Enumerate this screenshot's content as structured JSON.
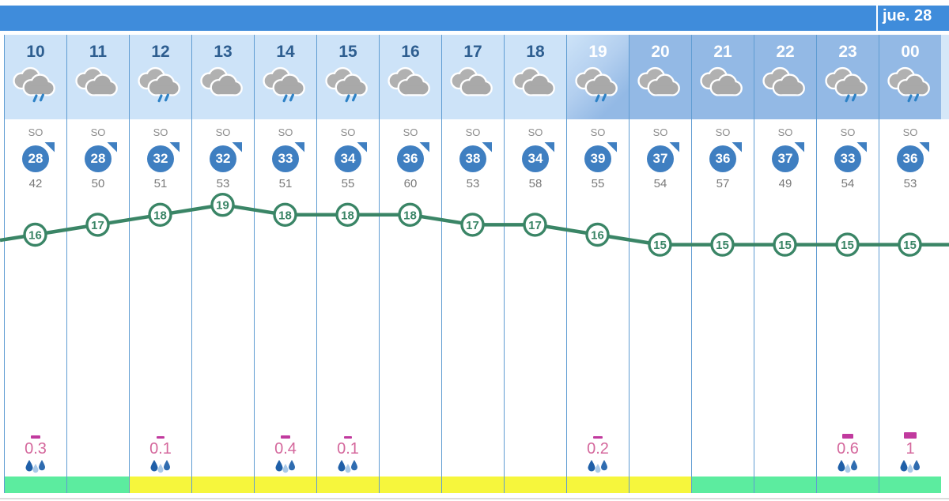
{
  "topbar": {
    "date_label": "jue. 28"
  },
  "columns": [
    {
      "hour": "10",
      "period": "day",
      "weather": "rain",
      "wind_dir": "SO",
      "wind_speed": "28",
      "wind_gust": "42",
      "temp": 16,
      "precip": "0.3",
      "strip": "green"
    },
    {
      "hour": "11",
      "period": "day",
      "weather": "cloudy",
      "wind_dir": "SO",
      "wind_speed": "28",
      "wind_gust": "50",
      "temp": 17,
      "precip": "",
      "strip": "green"
    },
    {
      "hour": "12",
      "period": "day",
      "weather": "rain",
      "wind_dir": "SO",
      "wind_speed": "32",
      "wind_gust": "51",
      "temp": 18,
      "precip": "0.1",
      "strip": "yellow"
    },
    {
      "hour": "13",
      "period": "day",
      "weather": "cloudy",
      "wind_dir": "SO",
      "wind_speed": "32",
      "wind_gust": "53",
      "temp": 19,
      "precip": "",
      "strip": "yellow"
    },
    {
      "hour": "14",
      "period": "day",
      "weather": "rain",
      "wind_dir": "SO",
      "wind_speed": "33",
      "wind_gust": "51",
      "temp": 18,
      "precip": "0.4",
      "strip": "yellow"
    },
    {
      "hour": "15",
      "period": "day",
      "weather": "rain",
      "wind_dir": "SO",
      "wind_speed": "34",
      "wind_gust": "55",
      "temp": 18,
      "precip": "0.1",
      "strip": "yellow"
    },
    {
      "hour": "16",
      "period": "day",
      "weather": "cloudy",
      "wind_dir": "SO",
      "wind_speed": "36",
      "wind_gust": "60",
      "temp": 18,
      "precip": "",
      "strip": "yellow"
    },
    {
      "hour": "17",
      "period": "day",
      "weather": "cloudy",
      "wind_dir": "SO",
      "wind_speed": "38",
      "wind_gust": "53",
      "temp": 17,
      "precip": "",
      "strip": "yellow"
    },
    {
      "hour": "18",
      "period": "day",
      "weather": "cloudy",
      "wind_dir": "SO",
      "wind_speed": "34",
      "wind_gust": "58",
      "temp": 17,
      "precip": "",
      "strip": "yellow"
    },
    {
      "hour": "19",
      "period": "twilight",
      "weather": "rain",
      "wind_dir": "SO",
      "wind_speed": "39",
      "wind_gust": "55",
      "temp": 16,
      "precip": "0.2",
      "strip": "yellow"
    },
    {
      "hour": "20",
      "period": "night",
      "weather": "cloudy",
      "wind_dir": "SO",
      "wind_speed": "37",
      "wind_gust": "54",
      "temp": 15,
      "precip": "",
      "strip": "yellow"
    },
    {
      "hour": "21",
      "period": "night",
      "weather": "cloudy",
      "wind_dir": "SO",
      "wind_speed": "36",
      "wind_gust": "57",
      "temp": 15,
      "precip": "",
      "strip": "green"
    },
    {
      "hour": "22",
      "period": "night",
      "weather": "cloudy",
      "wind_dir": "SO",
      "wind_speed": "37",
      "wind_gust": "49",
      "temp": 15,
      "precip": "",
      "strip": "green"
    },
    {
      "hour": "23",
      "period": "night",
      "weather": "rain",
      "wind_dir": "SO",
      "wind_speed": "33",
      "wind_gust": "54",
      "temp": 15,
      "precip": "0.6",
      "strip": "green"
    },
    {
      "hour": "00",
      "period": "night",
      "weather": "rain",
      "wind_dir": "SO",
      "wind_speed": "36",
      "wind_gust": "53",
      "temp": 15,
      "precip": "1",
      "strip": "green"
    }
  ],
  "chart_data": {
    "type": "line",
    "x": [
      "10",
      "11",
      "12",
      "13",
      "14",
      "15",
      "16",
      "17",
      "18",
      "19",
      "20",
      "21",
      "22",
      "23",
      "00"
    ],
    "series": [
      {
        "name": "temperature",
        "values": [
          16,
          17,
          18,
          19,
          18,
          18,
          18,
          17,
          17,
          16,
          15,
          15,
          15,
          15,
          15
        ]
      }
    ],
    "marker_labels": true,
    "legend": "none",
    "grid": "vertical-column-dividers-only"
  },
  "colors": {
    "strip_green": "#5cec9f",
    "strip_yellow": "#f6f63c",
    "accent_blue": "#3f8cdb",
    "wind_circle": "#3f7fc1",
    "temp_line": "#3a8566",
    "precip_text": "#d4679c",
    "precip_bar": "#c13a9e"
  }
}
